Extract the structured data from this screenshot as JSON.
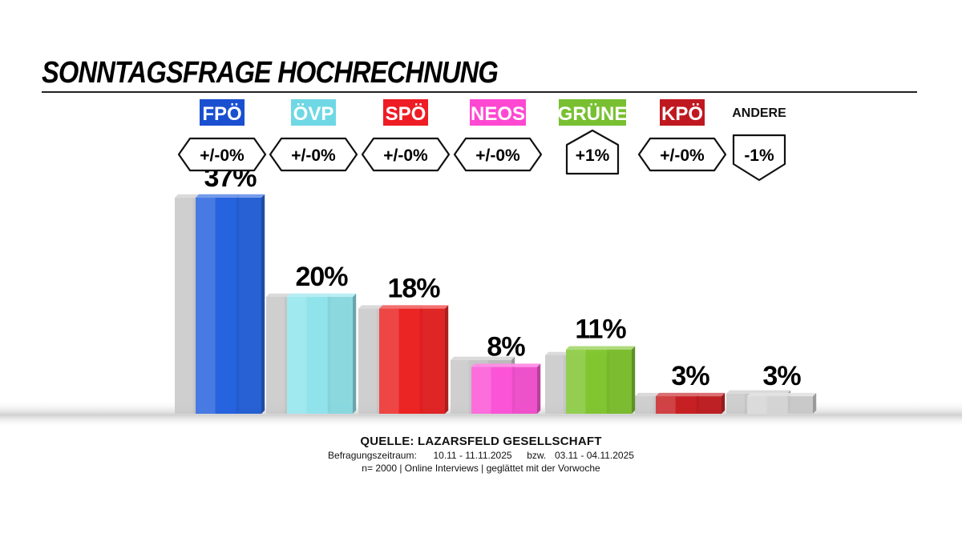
{
  "title": "SONNTAGSFRAGE HOCHRECHNUNG",
  "chart_data": {
    "type": "bar",
    "title": "SONNTAGSFRAGE HOCHRECHNUNG",
    "categories": [
      "FPÖ",
      "ÖVP",
      "SPÖ",
      "NEOS",
      "GRÜNE",
      "KPÖ",
      "ANDERE"
    ],
    "values": [
      37,
      20,
      18,
      8,
      11,
      3,
      3
    ],
    "value_labels": [
      "37%",
      "20%",
      "18%",
      "8%",
      "11%",
      "3%",
      "3%"
    ],
    "change_labels": [
      "+/-0%",
      "+/-0%",
      "+/-0%",
      "+/-0%",
      "+1%",
      "+/-0%",
      "-1%"
    ],
    "change_direction": [
      "neutral",
      "neutral",
      "neutral",
      "neutral",
      "up",
      "neutral",
      "down"
    ],
    "colors": [
      "#1f5fe0",
      "#8ee6ee",
      "#ee1c1c",
      "#ff4fd8",
      "#7ec62a",
      "#c8181c",
      "#d6d6d6"
    ],
    "label_backgrounds": [
      "#1a4fd0",
      "#6fd8e4",
      "#ee1c24",
      "#ff48d2",
      "#78c032",
      "#c01820",
      ""
    ],
    "previous_note": "grey bars show previous values",
    "ylim": [
      0,
      40
    ],
    "xlabel": "",
    "ylabel": ""
  },
  "footer": {
    "source": "QUELLE: LAZARSFELD GESELLSCHAFT",
    "period_label": "Befragungszeitraum:",
    "period_1": "10.11 - 11.11.2025",
    "period_sep": "bzw.",
    "period_2": "03.11 - 04.11.2025",
    "method": "n= 2000 | Online Interviews | geglättet mit der Vorwoche"
  }
}
